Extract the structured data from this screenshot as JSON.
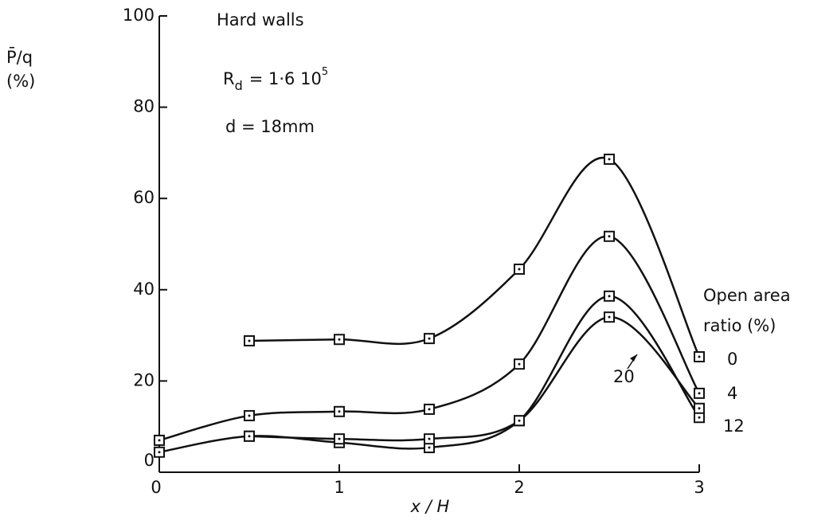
{
  "chart_data": {
    "type": "line",
    "title": "Hard walls",
    "annotation_rd": {
      "main": "R",
      "sub": "d",
      "rest": "= 1·6 10",
      "sup": "5"
    },
    "annotation_d": "d  = 18mm",
    "y_label": [
      "P̄/q",
      "(%)"
    ],
    "x_label": "x / H",
    "legend_title": [
      "Open  area",
      "ratio (%)"
    ],
    "x": [
      0,
      0.5,
      1,
      1.5,
      2,
      2.5,
      3
    ],
    "series": [
      {
        "name": "0",
        "color": "#111111",
        "values": [
          null,
          28.8,
          29.1,
          29.3,
          44.5,
          68.6,
          25.3
        ]
      },
      {
        "name": "4",
        "color": "#111111",
        "values": [
          7,
          12.4,
          13.3,
          13.8,
          23.7,
          51.7,
          17.3
        ]
      },
      {
        "name": "12",
        "color": "#111111",
        "values": [
          4.4,
          7.9,
          6.5,
          5.4,
          11.3,
          38.6,
          12
        ]
      },
      {
        "name": "20",
        "color": "#111111",
        "values": [
          null,
          7.9,
          7.3,
          7.3,
          11.3,
          34,
          14
        ]
      }
    ],
    "xlim": [
      0,
      3
    ],
    "xticks": [
      0,
      1,
      2,
      3
    ],
    "ylim": [
      0,
      100
    ],
    "yticks": [
      0,
      20,
      40,
      60,
      80,
      100
    ]
  }
}
